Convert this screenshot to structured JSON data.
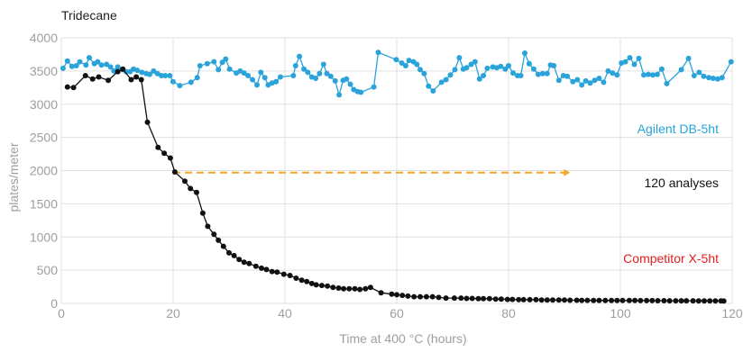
{
  "chart_data": {
    "type": "line",
    "title": "Tridecane",
    "xlabel": "Time at 400 °C (hours)",
    "ylabel": "plates/meter",
    "xlim": [
      0,
      120
    ],
    "ylim": [
      0,
      4000
    ],
    "x_ticks": [
      0,
      20,
      40,
      60,
      80,
      100,
      120
    ],
    "y_ticks": [
      0,
      500,
      1000,
      1500,
      2000,
      2500,
      3000,
      3500,
      4000
    ],
    "grid": true,
    "legend": "inline labels at right",
    "series": [
      {
        "name": "Agilent DB-5ht",
        "color": "#29a3d9",
        "points": [
          [
            0.3,
            3540
          ],
          [
            1.1,
            3650
          ],
          [
            1.9,
            3570
          ],
          [
            2.7,
            3580
          ],
          [
            3.3,
            3640
          ],
          [
            4.4,
            3590
          ],
          [
            5.0,
            3700
          ],
          [
            5.9,
            3610
          ],
          [
            6.5,
            3640
          ],
          [
            7.2,
            3590
          ],
          [
            8.1,
            3600
          ],
          [
            8.8,
            3560
          ],
          [
            9.4,
            3500
          ],
          [
            10.1,
            3560
          ],
          [
            10.9,
            3520
          ],
          [
            11.6,
            3490
          ],
          [
            12.3,
            3490
          ],
          [
            12.9,
            3530
          ],
          [
            13.6,
            3510
          ],
          [
            14.4,
            3480
          ],
          [
            15.2,
            3460
          ],
          [
            15.8,
            3450
          ],
          [
            16.5,
            3500
          ],
          [
            17.2,
            3460
          ],
          [
            17.9,
            3430
          ],
          [
            18.6,
            3430
          ],
          [
            19.4,
            3430
          ],
          [
            20.0,
            3340
          ],
          [
            21.2,
            3280
          ],
          [
            23.2,
            3330
          ],
          [
            24.3,
            3400
          ],
          [
            24.8,
            3580
          ],
          [
            26.1,
            3610
          ],
          [
            27.3,
            3640
          ],
          [
            28.1,
            3520
          ],
          [
            28.8,
            3630
          ],
          [
            29.4,
            3680
          ],
          [
            30.1,
            3530
          ],
          [
            31.3,
            3470
          ],
          [
            32.0,
            3500
          ],
          [
            32.7,
            3470
          ],
          [
            33.4,
            3430
          ],
          [
            34.2,
            3370
          ],
          [
            35.0,
            3290
          ],
          [
            35.7,
            3480
          ],
          [
            36.4,
            3400
          ],
          [
            37.0,
            3290
          ],
          [
            37.7,
            3320
          ],
          [
            38.4,
            3340
          ],
          [
            39.2,
            3410
          ],
          [
            41.5,
            3430
          ],
          [
            41.9,
            3580
          ],
          [
            42.6,
            3720
          ],
          [
            43.4,
            3530
          ],
          [
            44.1,
            3480
          ],
          [
            44.8,
            3410
          ],
          [
            45.5,
            3390
          ],
          [
            46.2,
            3460
          ],
          [
            46.9,
            3600
          ],
          [
            47.5,
            3460
          ],
          [
            48.2,
            3420
          ],
          [
            49.0,
            3350
          ],
          [
            49.7,
            3140
          ],
          [
            50.4,
            3360
          ],
          [
            51.0,
            3380
          ],
          [
            51.7,
            3300
          ],
          [
            52.3,
            3220
          ],
          [
            53.0,
            3190
          ],
          [
            53.6,
            3180
          ],
          [
            55.9,
            3260
          ],
          [
            56.7,
            3780
          ],
          [
            59.9,
            3670
          ],
          [
            60.9,
            3620
          ],
          [
            61.6,
            3580
          ],
          [
            62.2,
            3660
          ],
          [
            63.0,
            3640
          ],
          [
            63.6,
            3600
          ],
          [
            64.2,
            3520
          ],
          [
            64.9,
            3460
          ],
          [
            65.7,
            3270
          ],
          [
            66.5,
            3200
          ],
          [
            68.0,
            3330
          ],
          [
            68.8,
            3370
          ],
          [
            69.6,
            3440
          ],
          [
            70.4,
            3520
          ],
          [
            71.2,
            3700
          ],
          [
            71.9,
            3530
          ],
          [
            72.5,
            3550
          ],
          [
            73.3,
            3600
          ],
          [
            74.0,
            3640
          ],
          [
            74.8,
            3380
          ],
          [
            75.5,
            3430
          ],
          [
            76.2,
            3540
          ],
          [
            77.2,
            3560
          ],
          [
            77.9,
            3550
          ],
          [
            78.6,
            3570
          ],
          [
            79.4,
            3530
          ],
          [
            80.0,
            3580
          ],
          [
            80.8,
            3470
          ],
          [
            81.6,
            3430
          ],
          [
            82.2,
            3430
          ],
          [
            82.9,
            3770
          ],
          [
            83.7,
            3610
          ],
          [
            84.5,
            3530
          ],
          [
            85.3,
            3450
          ],
          [
            86.1,
            3460
          ],
          [
            86.9,
            3460
          ],
          [
            87.5,
            3590
          ],
          [
            88.1,
            3580
          ],
          [
            89.0,
            3360
          ],
          [
            89.8,
            3430
          ],
          [
            90.5,
            3420
          ],
          [
            91.5,
            3340
          ],
          [
            92.3,
            3370
          ],
          [
            93.1,
            3290
          ],
          [
            93.8,
            3350
          ],
          [
            94.6,
            3320
          ],
          [
            95.4,
            3360
          ],
          [
            96.2,
            3390
          ],
          [
            97.0,
            3330
          ],
          [
            97.8,
            3500
          ],
          [
            98.6,
            3470
          ],
          [
            99.4,
            3440
          ],
          [
            100.2,
            3620
          ],
          [
            100.9,
            3640
          ],
          [
            101.7,
            3700
          ],
          [
            102.5,
            3600
          ],
          [
            103.3,
            3690
          ],
          [
            104.2,
            3440
          ],
          [
            105.0,
            3450
          ],
          [
            105.8,
            3440
          ],
          [
            106.6,
            3450
          ],
          [
            107.4,
            3530
          ],
          [
            108.3,
            3310
          ],
          [
            110.9,
            3520
          ],
          [
            112.2,
            3690
          ],
          [
            113.2,
            3430
          ],
          [
            114.1,
            3480
          ],
          [
            114.9,
            3420
          ],
          [
            115.8,
            3400
          ],
          [
            116.6,
            3390
          ],
          [
            117.4,
            3380
          ],
          [
            118.2,
            3400
          ],
          [
            119.8,
            3640
          ]
        ]
      },
      {
        "name": "Competitor X-5ht",
        "color": "#111111",
        "points": [
          [
            1.1,
            3260
          ],
          [
            2.2,
            3250
          ],
          [
            4.3,
            3430
          ],
          [
            5.6,
            3380
          ],
          [
            6.7,
            3410
          ],
          [
            8.4,
            3360
          ],
          [
            10.1,
            3490
          ],
          [
            11.0,
            3530
          ],
          [
            12.5,
            3370
          ],
          [
            13.4,
            3410
          ],
          [
            14.3,
            3370
          ],
          [
            15.4,
            2730
          ],
          [
            17.3,
            2350
          ],
          [
            18.4,
            2260
          ],
          [
            19.5,
            2190
          ],
          [
            20.3,
            1980
          ],
          [
            22.1,
            1840
          ],
          [
            23.1,
            1730
          ],
          [
            24.2,
            1670
          ],
          [
            25.3,
            1360
          ],
          [
            26.2,
            1160
          ],
          [
            27.3,
            1040
          ],
          [
            28.1,
            950
          ],
          [
            29.0,
            860
          ],
          [
            30.0,
            760
          ],
          [
            30.9,
            720
          ],
          [
            31.8,
            660
          ],
          [
            32.7,
            620
          ],
          [
            33.6,
            600
          ],
          [
            34.8,
            560
          ],
          [
            35.8,
            530
          ],
          [
            36.7,
            510
          ],
          [
            37.7,
            480
          ],
          [
            38.6,
            470
          ],
          [
            39.8,
            440
          ],
          [
            40.9,
            420
          ],
          [
            42.0,
            380
          ],
          [
            43.0,
            350
          ],
          [
            43.9,
            330
          ],
          [
            44.8,
            300
          ],
          [
            45.6,
            280
          ],
          [
            46.6,
            270
          ],
          [
            47.6,
            260
          ],
          [
            48.6,
            240
          ],
          [
            49.6,
            230
          ],
          [
            50.5,
            220
          ],
          [
            51.5,
            220
          ],
          [
            52.5,
            220
          ],
          [
            53.4,
            210
          ],
          [
            54.4,
            220
          ],
          [
            55.3,
            240
          ],
          [
            57.2,
            160
          ],
          [
            59.1,
            140
          ],
          [
            60.0,
            130
          ],
          [
            61.0,
            120
          ],
          [
            62.0,
            110
          ],
          [
            63.1,
            100
          ],
          [
            64.2,
            100
          ],
          [
            65.3,
            100
          ],
          [
            66.4,
            100
          ],
          [
            67.5,
            90
          ],
          [
            68.8,
            80
          ],
          [
            70.3,
            80
          ],
          [
            71.5,
            80
          ],
          [
            72.5,
            75
          ],
          [
            73.5,
            75
          ],
          [
            74.6,
            70
          ],
          [
            75.5,
            70
          ],
          [
            76.6,
            70
          ],
          [
            77.7,
            65
          ],
          [
            78.7,
            65
          ],
          [
            79.8,
            60
          ],
          [
            80.7,
            60
          ],
          [
            81.8,
            55
          ],
          [
            82.7,
            55
          ],
          [
            83.8,
            55
          ],
          [
            84.9,
            55
          ],
          [
            85.9,
            50
          ],
          [
            86.9,
            50
          ],
          [
            87.9,
            50
          ],
          [
            89.0,
            50
          ],
          [
            90.0,
            50
          ],
          [
            91.0,
            48
          ],
          [
            92.2,
            48
          ],
          [
            93.1,
            46
          ],
          [
            94.1,
            46
          ],
          [
            95.2,
            45
          ],
          [
            96.2,
            45
          ],
          [
            97.3,
            45
          ],
          [
            98.4,
            45
          ],
          [
            99.4,
            44
          ],
          [
            100.4,
            44
          ],
          [
            101.6,
            43
          ],
          [
            102.6,
            43
          ],
          [
            103.6,
            42
          ],
          [
            104.7,
            42
          ],
          [
            105.7,
            42
          ],
          [
            106.7,
            41
          ],
          [
            107.8,
            41
          ],
          [
            108.8,
            40
          ],
          [
            109.9,
            40
          ],
          [
            110.9,
            40
          ],
          [
            111.8,
            39
          ],
          [
            113.0,
            39
          ],
          [
            114.0,
            38
          ],
          [
            115.0,
            38
          ],
          [
            116.0,
            37
          ],
          [
            117.0,
            37
          ],
          [
            118.0,
            36
          ],
          [
            118.5,
            35
          ]
        ]
      }
    ],
    "annotations": [
      {
        "name": "arrow-120-analyses",
        "type": "arrow",
        "color": "#f5a623",
        "from": [
          20,
          1970
        ],
        "to": [
          91,
          1970
        ]
      },
      {
        "name": "label-120-analyses",
        "text": "120 analyses"
      }
    ],
    "series_labels": {
      "agilent": "Agilent DB-5ht",
      "competitor": "Competitor X-5ht"
    },
    "colors": {
      "grid": "#e0e0e0",
      "axis_text": "#9e9e9e",
      "title_text": "#222222",
      "agilent_label": "#29a3d9",
      "competitor_label": "#e02020",
      "annotation_text": "#111111"
    }
  }
}
